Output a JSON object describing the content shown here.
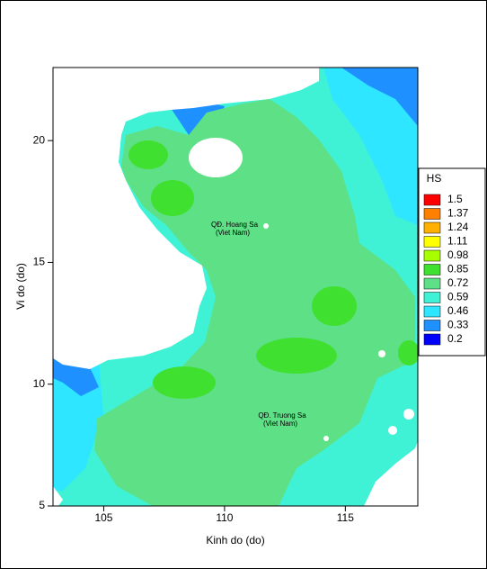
{
  "chart_data": {
    "type": "contour",
    "xlabel": "Kinh do (do)",
    "ylabel": "Vi do (do)",
    "xlim": [
      102.9,
      118
    ],
    "ylim": [
      5,
      23
    ],
    "xticks": [
      105,
      110,
      115
    ],
    "yticks": [
      5,
      10,
      15,
      20
    ],
    "legend_title": "HS",
    "levels": [
      1.5,
      1.37,
      1.24,
      1.11,
      0.98,
      0.85,
      0.72,
      0.59,
      0.46,
      0.33,
      0.2
    ],
    "colors": [
      "#ff0000",
      "#ff8000",
      "#ffb000",
      "#ffff00",
      "#a8ff00",
      "#3fe030",
      "#5ee086",
      "#3ff2d5",
      "#2ee6ff",
      "#1e90ff",
      "#0000ff"
    ],
    "legend_position": "right",
    "annotations": [
      {
        "lines": [
          "QĐ. Hoang Sa",
          "(Viet Nam)"
        ]
      },
      {
        "lines": [
          "QĐ. Truong Sa",
          "(Viet Nam)"
        ]
      }
    ]
  }
}
